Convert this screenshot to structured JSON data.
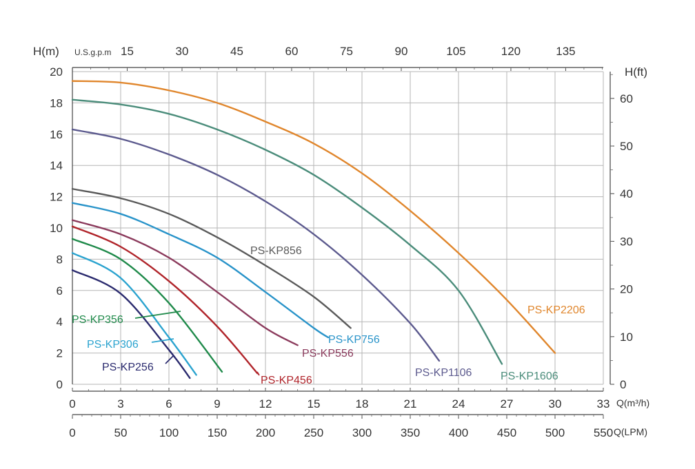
{
  "chart_data": {
    "type": "line",
    "title": "",
    "ylabel": "H(m)",
    "ylabel_right": "H(ft)",
    "xlabel_m3h": "Q(m³/h)",
    "xlabel_lpm": "Q(LPM)",
    "xlabel_top": "U.S.g.p.m",
    "xlim": [
      0,
      33
    ],
    "ylim": [
      0,
      20
    ],
    "x_ticks_m3h": [
      "0",
      "3",
      "6",
      "9",
      "12",
      "15",
      "18",
      "21",
      "24",
      "27",
      "30",
      "33"
    ],
    "x_ticks_lpm": [
      "0",
      "50",
      "100",
      "150",
      "200",
      "250",
      "300",
      "350",
      "400",
      "450",
      "500",
      "550"
    ],
    "x_ticks_gpm": [
      "15",
      "30",
      "45",
      "60",
      "75",
      "90",
      "105",
      "120",
      "135"
    ],
    "y_ticks_m": [
      "0",
      "2",
      "4",
      "6",
      "8",
      "10",
      "12",
      "14",
      "16",
      "18",
      "20"
    ],
    "y_ticks_ft": [
      "0",
      "10",
      "20",
      "30",
      "40",
      "50",
      "60"
    ],
    "grid": true,
    "series": [
      {
        "name": "PS-KP256",
        "color": "#2a2a6e",
        "x": [
          0,
          3,
          6,
          7.3
        ],
        "y": [
          7.3,
          5.8,
          2.2,
          0.4
        ]
      },
      {
        "name": "PS-KP306",
        "color": "#2aa3cf",
        "x": [
          0,
          3,
          6,
          7.7
        ],
        "y": [
          8.4,
          6.8,
          3.0,
          0.6
        ]
      },
      {
        "name": "PS-KP356",
        "color": "#1f8a4a",
        "x": [
          0,
          3,
          6,
          9.3
        ],
        "y": [
          9.3,
          8.0,
          5.2,
          0.8
        ]
      },
      {
        "name": "PS-KP456",
        "color": "#b0242a",
        "x": [
          0,
          3,
          6,
          9,
          11.5
        ],
        "y": [
          10.1,
          8.8,
          6.6,
          3.7,
          0.7
        ]
      },
      {
        "name": "PS-KP556",
        "color": "#8b3a5c",
        "x": [
          0,
          3,
          6,
          9,
          12,
          14
        ],
        "y": [
          10.5,
          9.6,
          8.1,
          5.9,
          3.6,
          2.5
        ]
      },
      {
        "name": "PS-KP756",
        "color": "#2893c9",
        "x": [
          0,
          3,
          6,
          9,
          12,
          15,
          15.9
        ],
        "y": [
          11.6,
          10.9,
          9.6,
          8.1,
          5.9,
          3.6,
          3.0
        ]
      },
      {
        "name": "PS-KP856",
        "color": "#5a5a5a",
        "x": [
          0,
          3,
          6,
          9,
          12,
          15,
          17.3
        ],
        "y": [
          12.5,
          11.9,
          10.9,
          9.4,
          7.6,
          5.6,
          3.6
        ]
      },
      {
        "name": "PS-KP1106",
        "color": "#5c5a8e",
        "x": [
          0,
          3,
          6,
          9,
          12,
          15,
          18,
          21,
          22.8
        ],
        "y": [
          16.3,
          15.7,
          14.7,
          13.4,
          11.7,
          9.6,
          7.0,
          3.9,
          1.5
        ]
      },
      {
        "name": "PS-KP1606",
        "color": "#4a8c7a",
        "x": [
          0,
          3,
          6,
          9,
          12,
          15,
          18,
          21,
          24,
          26.7
        ],
        "y": [
          18.2,
          17.9,
          17.3,
          16.3,
          15.0,
          13.4,
          11.3,
          8.9,
          6.0,
          1.3
        ]
      },
      {
        "name": "PS-KP2206",
        "color": "#e0862c",
        "x": [
          0,
          3,
          6,
          9,
          12,
          15,
          18,
          21,
          24,
          27,
          30
        ],
        "y": [
          19.4,
          19.3,
          18.8,
          18.0,
          16.8,
          15.4,
          13.5,
          11.1,
          8.4,
          5.4,
          2.0
        ]
      }
    ]
  }
}
